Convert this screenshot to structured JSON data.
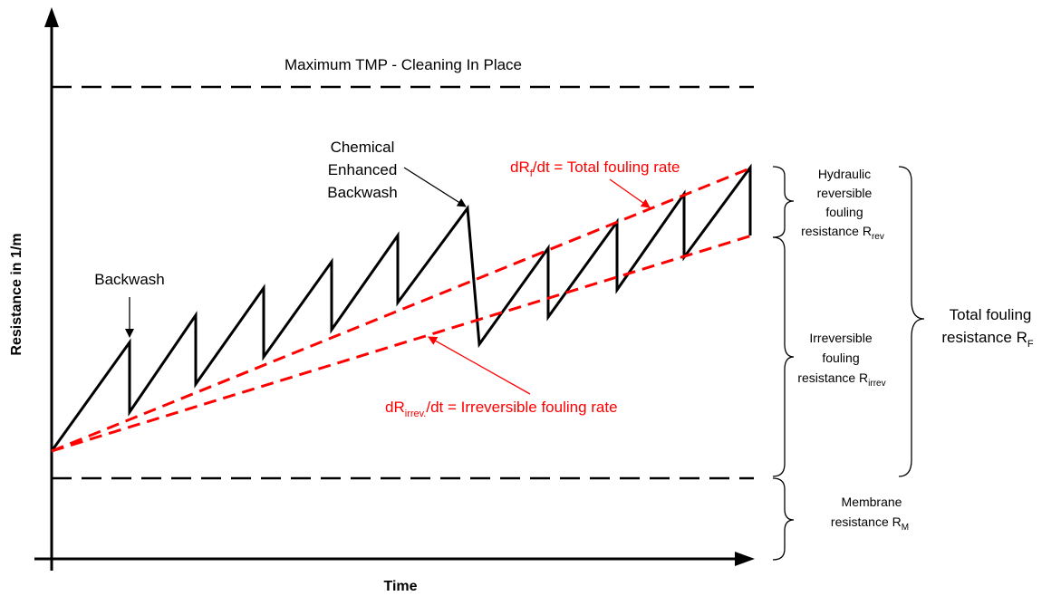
{
  "axes": {
    "y_label": "Resistance in 1/m",
    "x_label": "Time"
  },
  "lines": {
    "max_tmp": "Maximum TMP - Cleaning In Place"
  },
  "annotations": {
    "backwash": "Backwash",
    "ceb_1": "Chemical",
    "ceb_2": "Enhanced",
    "ceb_3": "Backwash",
    "total_rate_pre": "dR",
    "total_rate_sub": "f",
    "total_rate_post": "/dt = Total fouling rate",
    "irrev_rate_pre": "dR",
    "irrev_rate_sub": "irrev.",
    "irrev_rate_post": "/dt = Irreversible fouling rate"
  },
  "braces": {
    "hydraulic_1": "Hydraulic",
    "hydraulic_2": "reversible",
    "hydraulic_3": "fouling",
    "hydraulic_4": "resistance R",
    "hydraulic_sub": "rev",
    "irrev_1": "Irreversible",
    "irrev_2": "fouling",
    "irrev_3": "resistance R",
    "irrev_sub": "irrev",
    "membrane_1": "Membrane",
    "membrane_2": "resistance R",
    "membrane_sub": "M",
    "total_1": "Total fouling",
    "total_2": "resistance R",
    "total_sub": "F"
  },
  "colors": {
    "axis": "#000000",
    "rate_lines": "#ff0000"
  }
}
